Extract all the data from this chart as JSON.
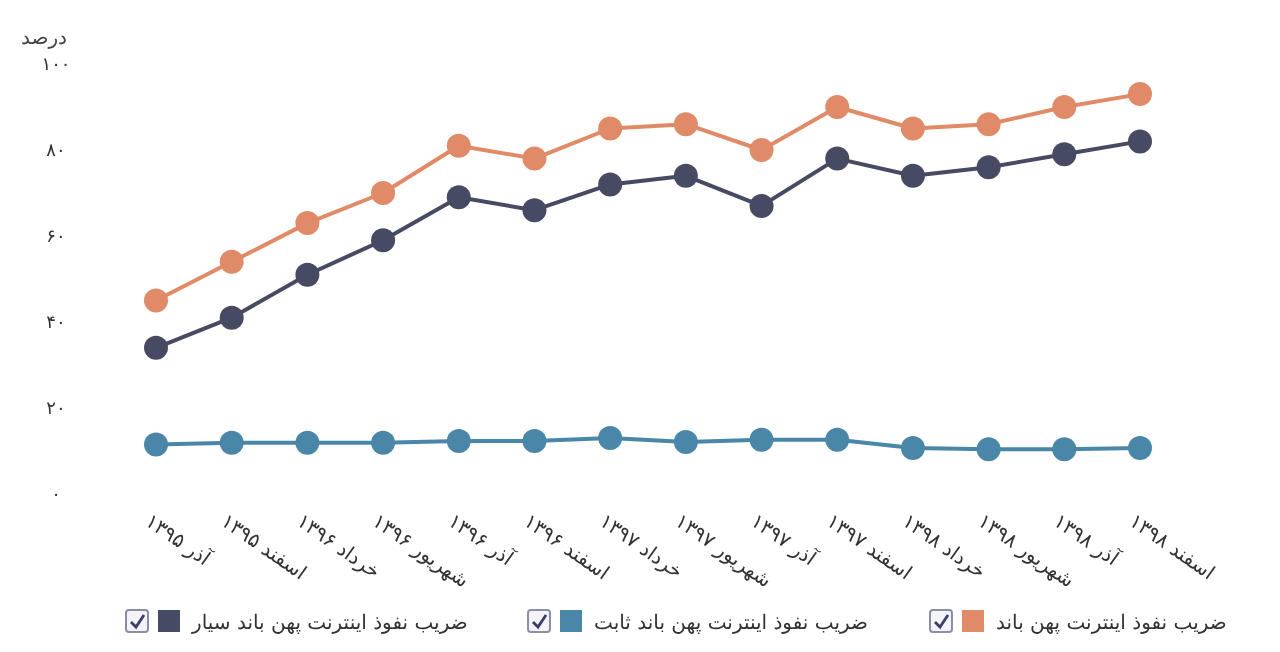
{
  "chart_data": {
    "type": "line",
    "ylabel": "درصد",
    "categories": [
      "آذر ۱۳۹۵",
      "اسفند ۱۳۹۵",
      "خرداد ۱۳۹۶",
      "شهریور ۱۳۹۶",
      "آذر ۱۳۹۶",
      "اسفند ۱۳۹۶",
      "خرداد ۱۳۹۷",
      "شهریور ۱۳۹۷",
      "آذر ۱۳۹۷",
      "اسفند ۱۳۹۷",
      "خرداد ۱۳۹۸",
      "شهریور ۱۳۹۸",
      "آذر ۱۳۹۸",
      "اسفند ۱۳۹۸"
    ],
    "series": [
      {
        "name": "ضریب نفوذ اینترنت پهن باند",
        "color": "#e08a68",
        "values": [
          45,
          54,
          63,
          70,
          81,
          78,
          85,
          86,
          80,
          90,
          85,
          86,
          90,
          93
        ]
      },
      {
        "name": "ضریب نفوذ اینترنت پهن باند ثابت",
        "color": "#4a86a8",
        "values": [
          11.5,
          11.9,
          11.9,
          11.9,
          12.3,
          12.3,
          13,
          12.1,
          12.6,
          12.6,
          10.7,
          10.4,
          10.4,
          10.7
        ]
      },
      {
        "name": "ضریب نفوذ اینترنت پهن باند سیار",
        "color": "#474a63",
        "values": [
          34,
          41,
          51,
          59,
          69,
          66,
          72,
          74,
          67,
          78,
          74,
          76,
          79,
          82
        ]
      }
    ],
    "ylim": [
      0,
      100
    ],
    "yticks": [
      {
        "value": 0,
        "label": "۰"
      },
      {
        "value": 20,
        "label": "۲۰"
      },
      {
        "value": 40,
        "label": "۴۰"
      },
      {
        "value": 60,
        "label": "۶۰"
      },
      {
        "value": 80,
        "label": "۸۰"
      },
      {
        "value": 100,
        "label": "۱۰۰"
      }
    ],
    "grid": false,
    "legend": "bottom",
    "marker": "circle",
    "line_style": "solid"
  }
}
